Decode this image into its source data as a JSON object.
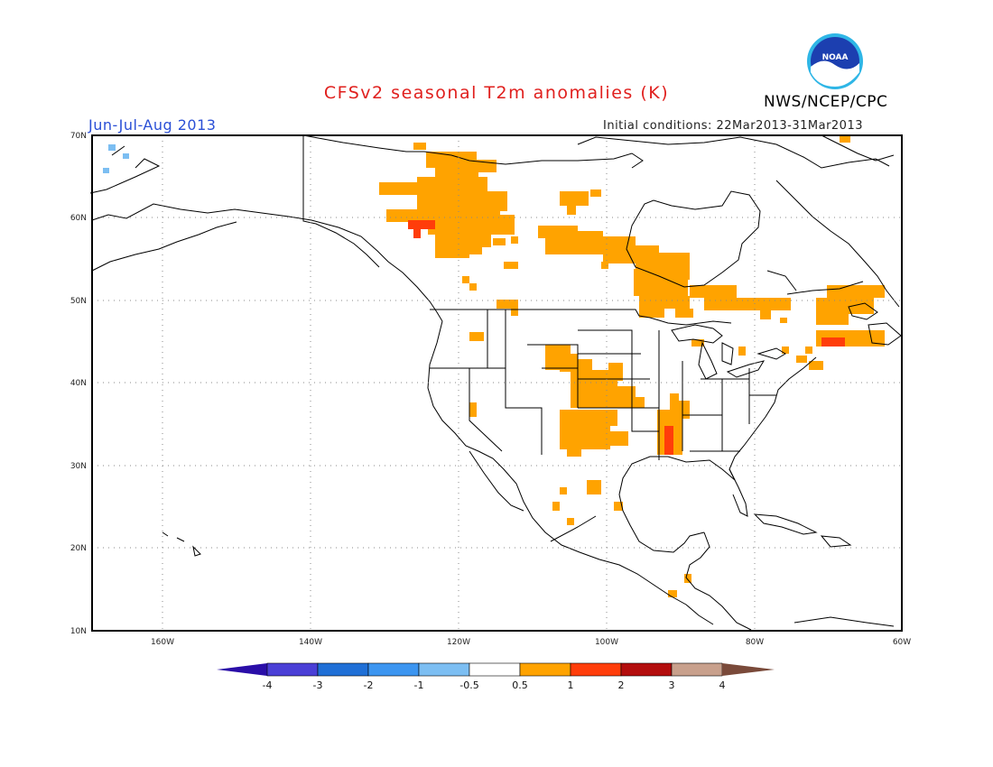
{
  "header": {
    "title": "CFSv2 seasonal T2m anomalies (K)",
    "agency": "NWS/NCEP/CPC",
    "logo_text": "NOAA",
    "season": "Jun-Jul-Aug 2013",
    "initial_conditions": "Initial conditions: 22Mar2013-31Mar2013"
  },
  "axes": {
    "lat_ticks": [
      "70N",
      "60N",
      "50N",
      "40N",
      "30N",
      "20N",
      "10N"
    ],
    "lon_ticks": [
      "160W",
      "140W",
      "120W",
      "100W",
      "80W",
      "60W"
    ]
  },
  "colorbar": {
    "labels": [
      "-4",
      "-3",
      "-2",
      "-1",
      "-0.5",
      "0.5",
      "1",
      "2",
      "3",
      "4"
    ],
    "colors": [
      "#2a0ea8",
      "#4a3fd6",
      "#1f6fd6",
      "#3c95f0",
      "#7cbef2",
      "#ffffff",
      "#ffa300",
      "#ff3d0a",
      "#b30d0d",
      "#c8a08c",
      "#7a4a3a"
    ]
  },
  "anomaly_colors": {
    "warm1": "#ffa300",
    "warm2": "#ff3d0a",
    "cool": "#7cbef2"
  }
}
